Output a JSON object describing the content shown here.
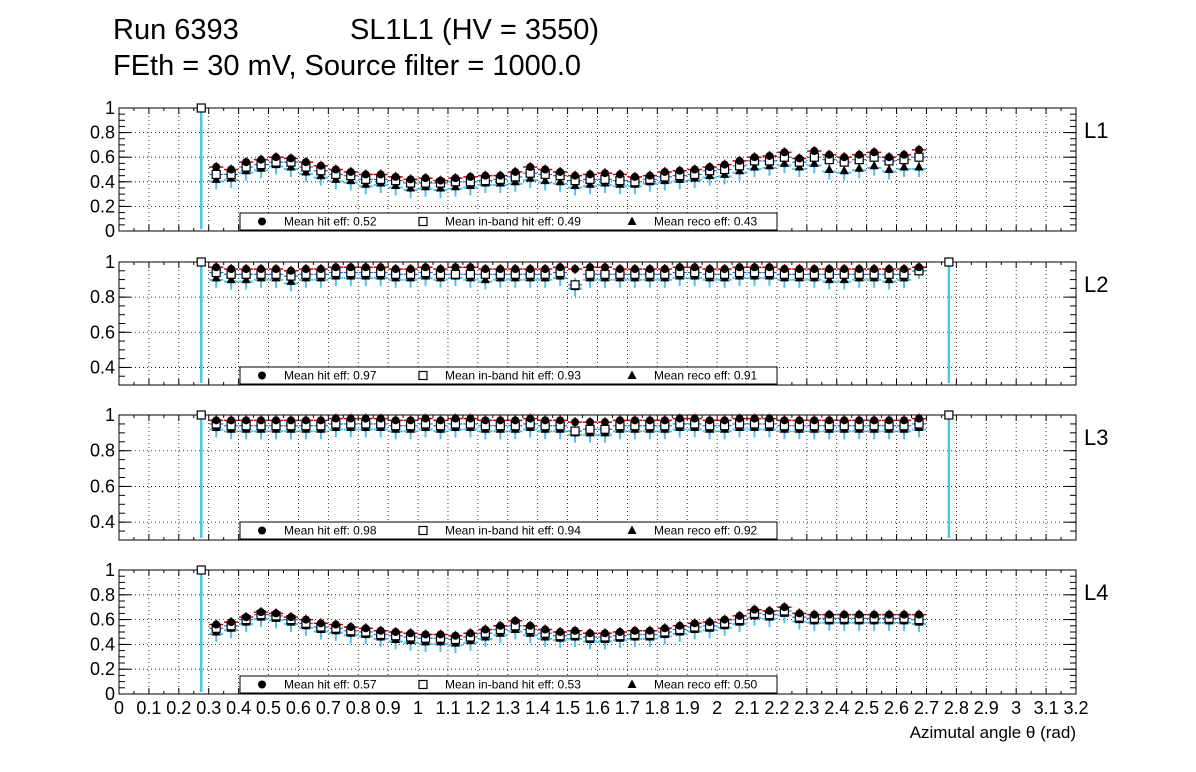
{
  "header": {
    "run": "Run 6393",
    "chamber": "SL1L1 (HV = 3550)",
    "settings": "FEth = 30 mV, Source filter = 1000.0"
  },
  "colors": {
    "hit": "#cc0000",
    "reco": "#7a2fa8",
    "inband": "#2a6fdb",
    "stat_error": "#4cc4ee"
  },
  "chart_data": {
    "type": "scatter",
    "xlabel": "Azimutal angle θ (rad)",
    "xlim": [
      0,
      3.2
    ],
    "x_ticks": [
      "0",
      "0.1",
      "0.2",
      "0.3",
      "0.4",
      "0.5",
      "0.6",
      "0.7",
      "0.8",
      "0.9",
      "1",
      "1.1",
      "1.2",
      "1.3",
      "1.4",
      "1.5",
      "1.6",
      "1.7",
      "1.8",
      "1.9",
      "2",
      "2.1",
      "2.2",
      "2.3",
      "2.4",
      "2.5",
      "2.6",
      "2.7",
      "2.8",
      "2.9",
      "3",
      "3.1",
      "3.2"
    ],
    "x_edge_first": 0.275,
    "x_edge_last": 2.775,
    "x_step": 0.05,
    "marker_labels": {
      "hit": "Mean hit  eff:",
      "inband": "Mean in-band hit eff:",
      "reco": "Mean reco eff:"
    },
    "panels": [
      {
        "layer": "L1",
        "ylim": [
          0,
          1.0
        ],
        "y_ticks": [
          "0",
          "0.2",
          "0.4",
          "0.6",
          "0.8",
          "1"
        ],
        "y_tick_values": [
          0,
          0.2,
          0.4,
          0.6,
          0.8,
          1.0
        ],
        "x": [
          0.325,
          0.375,
          0.425,
          0.475,
          0.525,
          0.575,
          0.625,
          0.675,
          0.725,
          0.775,
          0.825,
          0.875,
          0.925,
          0.975,
          1.025,
          1.075,
          1.125,
          1.175,
          1.225,
          1.275,
          1.325,
          1.375,
          1.425,
          1.475,
          1.525,
          1.575,
          1.625,
          1.675,
          1.725,
          1.775,
          1.825,
          1.875,
          1.925,
          1.975,
          2.025,
          2.075,
          2.125,
          2.175,
          2.225,
          2.275,
          2.325,
          2.375,
          2.425,
          2.475,
          2.525,
          2.575,
          2.625,
          2.675
        ],
        "hit": [
          0.52,
          0.5,
          0.56,
          0.58,
          0.6,
          0.59,
          0.56,
          0.53,
          0.5,
          0.48,
          0.46,
          0.46,
          0.44,
          0.42,
          0.43,
          0.41,
          0.43,
          0.44,
          0.45,
          0.45,
          0.48,
          0.52,
          0.5,
          0.48,
          0.45,
          0.46,
          0.47,
          0.46,
          0.44,
          0.45,
          0.48,
          0.49,
          0.5,
          0.52,
          0.54,
          0.57,
          0.6,
          0.61,
          0.64,
          0.59,
          0.65,
          0.62,
          0.6,
          0.62,
          0.64,
          0.6,
          0.62,
          0.66
        ],
        "inband": [
          0.46,
          0.46,
          0.52,
          0.54,
          0.56,
          0.56,
          0.52,
          0.49,
          0.46,
          0.45,
          0.42,
          0.42,
          0.41,
          0.39,
          0.39,
          0.39,
          0.4,
          0.4,
          0.41,
          0.42,
          0.44,
          0.47,
          0.46,
          0.45,
          0.41,
          0.42,
          0.42,
          0.41,
          0.4,
          0.42,
          0.44,
          0.45,
          0.46,
          0.49,
          0.5,
          0.53,
          0.57,
          0.57,
          0.6,
          0.56,
          0.6,
          0.58,
          0.56,
          0.58,
          0.6,
          0.57,
          0.58,
          0.6
        ],
        "reco": [
          0.42,
          0.43,
          0.49,
          0.51,
          0.54,
          0.52,
          0.48,
          0.45,
          0.42,
          0.41,
          0.38,
          0.39,
          0.37,
          0.35,
          0.36,
          0.35,
          0.36,
          0.37,
          0.39,
          0.39,
          0.4,
          0.43,
          0.41,
          0.4,
          0.37,
          0.38,
          0.39,
          0.38,
          0.38,
          0.4,
          0.41,
          0.42,
          0.43,
          0.45,
          0.46,
          0.49,
          0.52,
          0.53,
          0.55,
          0.52,
          0.55,
          0.5,
          0.49,
          0.51,
          0.53,
          0.5,
          0.52,
          0.52
        ],
        "edge_value": 1.0,
        "edge_points": [
          "first"
        ],
        "means": {
          "hit": "0.52",
          "inband": "0.49",
          "reco": "0.43"
        }
      },
      {
        "layer": "L2",
        "ylim": [
          0.3,
          1.0
        ],
        "y_ticks": [
          "0.4",
          "0.6",
          "0.8",
          "1"
        ],
        "y_tick_values": [
          0.4,
          0.6,
          0.8,
          1.0
        ],
        "x": [
          0.325,
          0.375,
          0.425,
          0.475,
          0.525,
          0.575,
          0.625,
          0.675,
          0.725,
          0.775,
          0.825,
          0.875,
          0.925,
          0.975,
          1.025,
          1.075,
          1.125,
          1.175,
          1.225,
          1.275,
          1.325,
          1.375,
          1.425,
          1.475,
          1.525,
          1.575,
          1.625,
          1.675,
          1.725,
          1.775,
          1.825,
          1.875,
          1.925,
          1.975,
          2.025,
          2.075,
          2.125,
          2.175,
          2.225,
          2.275,
          2.325,
          2.375,
          2.425,
          2.475,
          2.525,
          2.575,
          2.625,
          2.675
        ],
        "hit": [
          0.97,
          0.96,
          0.96,
          0.96,
          0.96,
          0.95,
          0.96,
          0.96,
          0.97,
          0.97,
          0.97,
          0.97,
          0.96,
          0.96,
          0.97,
          0.96,
          0.97,
          0.97,
          0.96,
          0.96,
          0.96,
          0.96,
          0.96,
          0.97,
          0.96,
          0.97,
          0.97,
          0.96,
          0.96,
          0.96,
          0.96,
          0.97,
          0.97,
          0.96,
          0.96,
          0.97,
          0.97,
          0.97,
          0.96,
          0.96,
          0.96,
          0.96,
          0.96,
          0.96,
          0.96,
          0.96,
          0.96,
          0.97
        ],
        "inband": [
          0.94,
          0.93,
          0.93,
          0.93,
          0.93,
          0.92,
          0.93,
          0.93,
          0.94,
          0.94,
          0.94,
          0.94,
          0.93,
          0.93,
          0.94,
          0.93,
          0.93,
          0.93,
          0.93,
          0.93,
          0.93,
          0.93,
          0.93,
          0.94,
          0.87,
          0.93,
          0.93,
          0.93,
          0.93,
          0.93,
          0.93,
          0.94,
          0.94,
          0.93,
          0.93,
          0.94,
          0.94,
          0.94,
          0.93,
          0.93,
          0.93,
          0.93,
          0.93,
          0.93,
          0.93,
          0.93,
          0.93,
          0.95
        ],
        "reco": [
          0.91,
          0.9,
          0.9,
          0.91,
          0.91,
          0.89,
          0.91,
          0.91,
          0.92,
          0.92,
          0.92,
          0.92,
          0.91,
          0.91,
          0.92,
          0.91,
          0.92,
          0.91,
          0.9,
          0.91,
          0.91,
          0.91,
          0.91,
          0.92,
          0.86,
          0.91,
          0.91,
          0.91,
          0.91,
          0.91,
          0.91,
          0.92,
          0.92,
          0.91,
          0.91,
          0.92,
          0.92,
          0.92,
          0.91,
          0.91,
          0.91,
          0.9,
          0.9,
          0.91,
          0.91,
          0.9,
          0.91,
          0.96
        ],
        "edge_value": 1.0,
        "edge_points": [
          "first",
          "last"
        ],
        "means": {
          "hit": "0.97",
          "inband": "0.93",
          "reco": "0.91"
        }
      },
      {
        "layer": "L3",
        "ylim": [
          0.3,
          1.0
        ],
        "y_ticks": [
          "0.4",
          "0.6",
          "0.8",
          "1"
        ],
        "y_tick_values": [
          0.4,
          0.6,
          0.8,
          1.0
        ],
        "x": [
          0.325,
          0.375,
          0.425,
          0.475,
          0.525,
          0.575,
          0.625,
          0.675,
          0.725,
          0.775,
          0.825,
          0.875,
          0.925,
          0.975,
          1.025,
          1.075,
          1.125,
          1.175,
          1.225,
          1.275,
          1.325,
          1.375,
          1.425,
          1.475,
          1.525,
          1.575,
          1.625,
          1.675,
          1.725,
          1.775,
          1.825,
          1.875,
          1.925,
          1.975,
          2.025,
          2.075,
          2.125,
          2.175,
          2.225,
          2.275,
          2.325,
          2.375,
          2.425,
          2.475,
          2.525,
          2.575,
          2.625,
          2.675
        ],
        "hit": [
          0.97,
          0.97,
          0.97,
          0.97,
          0.97,
          0.97,
          0.97,
          0.97,
          0.98,
          0.98,
          0.98,
          0.98,
          0.97,
          0.97,
          0.98,
          0.97,
          0.98,
          0.98,
          0.97,
          0.97,
          0.97,
          0.98,
          0.97,
          0.97,
          0.96,
          0.96,
          0.96,
          0.97,
          0.97,
          0.97,
          0.97,
          0.98,
          0.98,
          0.97,
          0.97,
          0.98,
          0.98,
          0.98,
          0.97,
          0.97,
          0.97,
          0.97,
          0.97,
          0.97,
          0.97,
          0.97,
          0.97,
          0.98
        ],
        "inband": [
          0.95,
          0.94,
          0.94,
          0.94,
          0.94,
          0.94,
          0.94,
          0.94,
          0.95,
          0.95,
          0.95,
          0.95,
          0.94,
          0.94,
          0.95,
          0.94,
          0.95,
          0.95,
          0.94,
          0.94,
          0.94,
          0.95,
          0.94,
          0.94,
          0.91,
          0.92,
          0.92,
          0.94,
          0.94,
          0.94,
          0.94,
          0.95,
          0.95,
          0.94,
          0.94,
          0.95,
          0.95,
          0.95,
          0.94,
          0.94,
          0.94,
          0.94,
          0.94,
          0.94,
          0.94,
          0.94,
          0.94,
          0.95
        ],
        "reco": [
          0.93,
          0.92,
          0.92,
          0.92,
          0.92,
          0.92,
          0.92,
          0.92,
          0.93,
          0.93,
          0.93,
          0.93,
          0.92,
          0.92,
          0.93,
          0.92,
          0.93,
          0.93,
          0.92,
          0.92,
          0.92,
          0.93,
          0.92,
          0.92,
          0.9,
          0.9,
          0.9,
          0.92,
          0.92,
          0.92,
          0.92,
          0.93,
          0.93,
          0.92,
          0.92,
          0.93,
          0.93,
          0.93,
          0.92,
          0.92,
          0.92,
          0.92,
          0.92,
          0.92,
          0.92,
          0.92,
          0.92,
          0.93
        ],
        "edge_value": 1.0,
        "edge_points": [
          "first",
          "last"
        ],
        "means": {
          "hit": "0.98",
          "inband": "0.94",
          "reco": "0.92"
        }
      },
      {
        "layer": "L4",
        "ylim": [
          0,
          1.0
        ],
        "y_ticks": [
          "0",
          "0.2",
          "0.4",
          "0.6",
          "0.8",
          "1"
        ],
        "y_tick_values": [
          0,
          0.2,
          0.4,
          0.6,
          0.8,
          1.0
        ],
        "x": [
          0.325,
          0.375,
          0.425,
          0.475,
          0.525,
          0.575,
          0.625,
          0.675,
          0.725,
          0.775,
          0.825,
          0.875,
          0.925,
          0.975,
          1.025,
          1.075,
          1.125,
          1.175,
          1.225,
          1.275,
          1.325,
          1.375,
          1.425,
          1.475,
          1.525,
          1.575,
          1.625,
          1.675,
          1.725,
          1.775,
          1.825,
          1.875,
          1.925,
          1.975,
          2.025,
          2.075,
          2.125,
          2.175,
          2.225,
          2.275,
          2.325,
          2.375,
          2.425,
          2.475,
          2.525,
          2.575,
          2.625,
          2.675
        ],
        "hit": [
          0.56,
          0.58,
          0.62,
          0.66,
          0.65,
          0.62,
          0.6,
          0.57,
          0.56,
          0.54,
          0.53,
          0.51,
          0.5,
          0.49,
          0.48,
          0.48,
          0.47,
          0.49,
          0.52,
          0.55,
          0.59,
          0.55,
          0.52,
          0.5,
          0.51,
          0.49,
          0.49,
          0.5,
          0.51,
          0.51,
          0.53,
          0.55,
          0.57,
          0.58,
          0.6,
          0.63,
          0.68,
          0.67,
          0.7,
          0.65,
          0.64,
          0.64,
          0.64,
          0.64,
          0.64,
          0.64,
          0.64,
          0.64
        ],
        "inband": [
          0.53,
          0.55,
          0.6,
          0.64,
          0.63,
          0.6,
          0.57,
          0.54,
          0.53,
          0.51,
          0.5,
          0.48,
          0.47,
          0.46,
          0.45,
          0.45,
          0.44,
          0.46,
          0.49,
          0.52,
          0.55,
          0.52,
          0.49,
          0.47,
          0.48,
          0.46,
          0.46,
          0.47,
          0.48,
          0.48,
          0.5,
          0.52,
          0.54,
          0.55,
          0.57,
          0.6,
          0.65,
          0.64,
          0.67,
          0.62,
          0.61,
          0.61,
          0.61,
          0.61,
          0.61,
          0.61,
          0.61,
          0.6
        ],
        "reco": [
          0.5,
          0.53,
          0.58,
          0.62,
          0.61,
          0.58,
          0.55,
          0.52,
          0.51,
          0.49,
          0.48,
          0.46,
          0.44,
          0.43,
          0.42,
          0.42,
          0.41,
          0.43,
          0.46,
          0.49,
          0.52,
          0.49,
          0.46,
          0.45,
          0.46,
          0.44,
          0.44,
          0.45,
          0.46,
          0.46,
          0.48,
          0.5,
          0.52,
          0.53,
          0.55,
          0.58,
          0.63,
          0.62,
          0.65,
          0.6,
          0.59,
          0.59,
          0.59,
          0.59,
          0.59,
          0.59,
          0.59,
          0.58
        ],
        "edge_value": 1.0,
        "edge_points": [
          "first"
        ],
        "means": {
          "hit": "0.57",
          "inband": "0.53",
          "reco": "0.50"
        }
      }
    ]
  }
}
